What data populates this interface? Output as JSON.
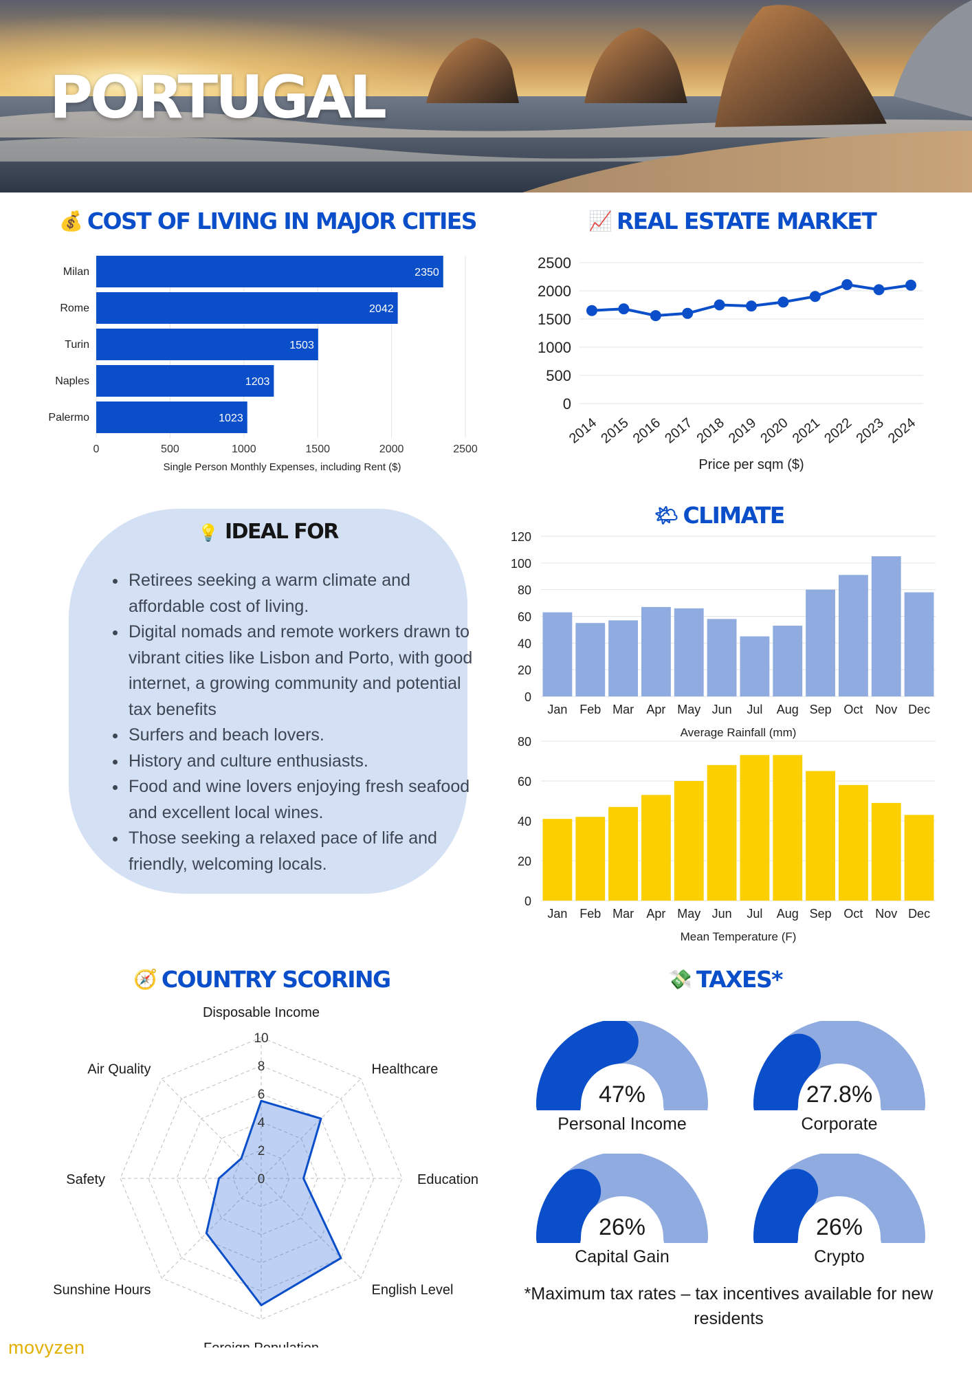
{
  "hero": {
    "title": "PORTUGAL"
  },
  "sections": {
    "cost_of_living": {
      "icon": "money-bag-icon",
      "title": "COST OF LIVING IN MAJOR CITIES"
    },
    "real_estate": {
      "icon": "chart-increasing-icon",
      "title": "REAL ESTATE MARKET"
    },
    "climate": {
      "icon": "sun-behind-cloud-icon",
      "title": "CLIMATE"
    },
    "country_scoring": {
      "icon": "compass-icon",
      "title": "COUNTRY SCORING"
    },
    "taxes": {
      "icon": "money-with-wings-icon",
      "title": "TAXES*"
    }
  },
  "ideal_for": {
    "icon": "light-bulb-icon",
    "title": "IDEAL FOR",
    "items": [
      "Retirees seeking a warm climate and affordable cost of living.",
      "Digital nomads and remote workers drawn to vibrant cities like Lisbon and Porto, with good internet, a growing community and potential tax benefits",
      "Surfers and beach lovers.",
      "History and culture enthusiasts.",
      "Food and wine lovers enjoying fresh seafood and excellent local wines.",
      "Those seeking a relaxed pace of life and friendly, welcoming locals."
    ]
  },
  "taxes": {
    "gauges": [
      {
        "value": "47%",
        "label": "Personal Income",
        "fraction": 0.47
      },
      {
        "value": "27.8%",
        "label": "Corporate",
        "fraction": 0.278
      },
      {
        "value": "26%",
        "label": "Capital Gain",
        "fraction": 0.26
      },
      {
        "value": "26%",
        "label": "Crypto",
        "fraction": 0.26
      }
    ],
    "note": "*Maximum tax rates – tax incentives available for new residents"
  },
  "brand": "movyzen",
  "colors": {
    "primary": "#0a4fc9",
    "light_blue": "#8fabdf",
    "yellow": "#fccf00",
    "card_bg": "#d4e0f4",
    "brand": "#e2b000"
  },
  "chart_data": [
    {
      "id": "cost",
      "type": "bar",
      "orientation": "horizontal",
      "categories": [
        "Milan",
        "Rome",
        "Turin",
        "Naples",
        "Palermo"
      ],
      "values": [
        2350,
        2042,
        1503,
        1203,
        1023
      ],
      "xlabel": "Single Person Monthly Expenses, including Rent ($)",
      "xlim": [
        0,
        2500
      ],
      "ticks": [
        0,
        500,
        1000,
        1500,
        2000,
        2500
      ],
      "grid": true,
      "color": "#0a4fc9"
    },
    {
      "id": "realestate",
      "type": "line",
      "x": [
        "2014",
        "2015",
        "2016",
        "2017",
        "2018",
        "2019",
        "2020",
        "2021",
        "2022",
        "2023",
        "2024"
      ],
      "values": [
        1650,
        1680,
        1560,
        1600,
        1750,
        1730,
        1800,
        1900,
        2110,
        2020,
        2100
      ],
      "xlabel": "Price per sqm ($)",
      "ylim": [
        0,
        2500
      ],
      "ticks": [
        0,
        500,
        1000,
        1500,
        2000,
        2500
      ],
      "grid": true,
      "color": "#0a4fc9"
    },
    {
      "id": "rainfall",
      "type": "bar",
      "categories": [
        "Jan",
        "Feb",
        "Mar",
        "Apr",
        "May",
        "Jun",
        "Jul",
        "Aug",
        "Sep",
        "Oct",
        "Nov",
        "Dec"
      ],
      "values": [
        63,
        55,
        57,
        67,
        66,
        58,
        45,
        53,
        80,
        91,
        105,
        78
      ],
      "xlabel": "Average Rainfall (mm)",
      "ylim": [
        0,
        120
      ],
      "ticks": [
        0,
        20,
        40,
        60,
        80,
        100,
        120
      ],
      "grid": true,
      "color": "#8fabdf"
    },
    {
      "id": "temperature",
      "type": "bar",
      "categories": [
        "Jan",
        "Feb",
        "Mar",
        "Apr",
        "May",
        "Jun",
        "Jul",
        "Aug",
        "Sep",
        "Oct",
        "Nov",
        "Dec"
      ],
      "values": [
        41,
        42,
        47,
        53,
        60,
        68,
        73,
        73,
        65,
        58,
        49,
        43
      ],
      "xlabel": "Mean Temperature (F)",
      "ylim": [
        0,
        80
      ],
      "ticks": [
        0,
        20,
        40,
        60,
        80
      ],
      "grid": true,
      "color": "#fccf00"
    },
    {
      "id": "scoring",
      "type": "radar",
      "axes": [
        "Disposable Income",
        "Healthcare",
        "Education",
        "English Level",
        "Foreign Population",
        "Sunshine Hours",
        "Safety",
        "Air Quality"
      ],
      "values": [
        5.5,
        6,
        3,
        8,
        9,
        5.5,
        3,
        2
      ],
      "rlim": [
        0,
        10
      ],
      "ticks": [
        0,
        2,
        4,
        6,
        8,
        10
      ],
      "color": "#0a4fc9"
    }
  ]
}
